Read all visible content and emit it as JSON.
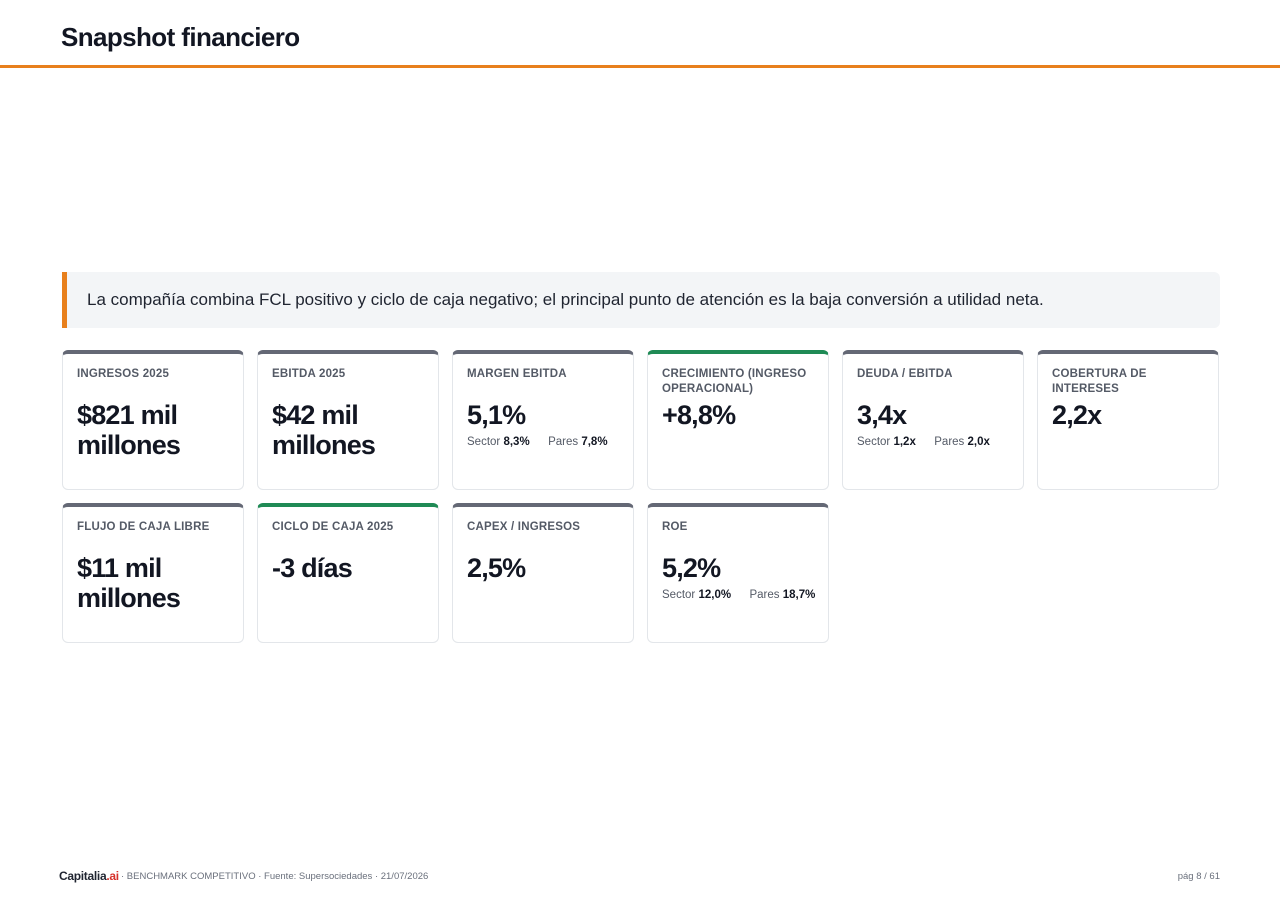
{
  "header": {
    "title": "Snapshot financiero"
  },
  "callout": {
    "text": "La compañía combina FCL positivo y ciclo de caja negativo; el principal punto de atención es la baja conversión a utilidad neta."
  },
  "cards": [
    {
      "label": "INGRESOS 2025",
      "value": "$821 mil millones",
      "accent": "#646875"
    },
    {
      "label": "EBITDA 2025",
      "value": "$42 mil millones",
      "accent": "#646875"
    },
    {
      "label": "MARGEN EBITDA",
      "value": "5,1%",
      "accent": "#646875",
      "sector_label": "Sector",
      "sector_value": "8,3%",
      "pares_label": "Pares",
      "pares_value": "7,8%"
    },
    {
      "label": "CRECIMIENTO (INGRESO OPERACIONAL)",
      "value": "+8,8%",
      "accent": "#1f8a55"
    },
    {
      "label": "DEUDA / EBITDA",
      "value": "3,4x",
      "accent": "#646875",
      "sector_label": "Sector",
      "sector_value": "1,2x",
      "pares_label": "Pares",
      "pares_value": "2,0x"
    },
    {
      "label": "COBERTURA DE INTERESES",
      "value": "2,2x",
      "accent": "#646875"
    },
    {
      "label": "FLUJO DE CAJA LIBRE",
      "value": "$11 mil millones",
      "accent": "#646875"
    },
    {
      "label": "CICLO DE CAJA 2025",
      "value": "-3 días",
      "accent": "#1f8a55"
    },
    {
      "label": "CAPEX / INGRESOS",
      "value": "2,5%",
      "accent": "#646875"
    },
    {
      "label": "ROE",
      "value": "5,2%",
      "accent": "#646875",
      "sector_label": "Sector",
      "sector_value": "12,0%",
      "pares_label": "Pares",
      "pares_value": "18,7%"
    }
  ],
  "footer": {
    "brand_name": "Capitalia",
    "brand_suffix": ".ai",
    "meta": "· BENCHMARK COMPETITIVO · Fuente: Supersociedades · 21/07/2026",
    "page": "pág 8 / 61"
  }
}
